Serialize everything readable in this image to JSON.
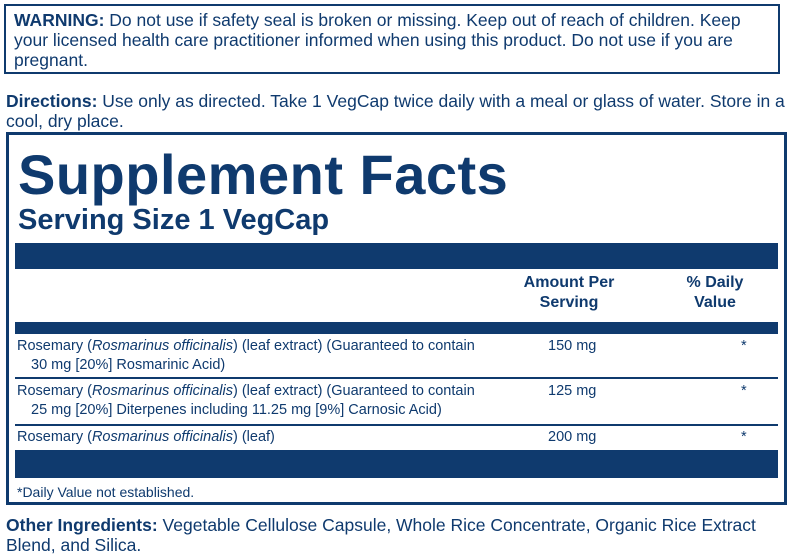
{
  "warning": {
    "label": "WARNING:",
    "text": " Do not use if safety seal is broken or missing. Keep out of reach of children. Keep your licensed health care practitioner informed when using this product. Do not use if you are pregnant."
  },
  "directions": {
    "label": "Directions:",
    "text": " Use only as directed. Take 1 VegCap twice daily with a meal or glass of water. Store in a cool, dry place."
  },
  "facts": {
    "title": "Supplement Facts",
    "serving_size": "Serving Size 1 VegCap",
    "amount_header": "Amount Per Serving",
    "dv_header": "% Daily Value",
    "rows": [
      {
        "name_pre": "Rosemary (",
        "name_italic": "Rosmarinus officinalis",
        "name_post": ") (leaf extract) (Guaranteed to contain",
        "name_line2": "30 mg [20%] Rosmarinic Acid)",
        "amount": "150 mg",
        "dv": "*"
      },
      {
        "name_pre": "Rosemary (",
        "name_italic": "Rosmarinus officinalis",
        "name_post": ") (leaf extract) (Guaranteed to contain",
        "name_line2": "25 mg [20%] Diterpenes including 11.25 mg [9%] Carnosic Acid)",
        "amount": "125 mg",
        "dv": "*"
      },
      {
        "name_pre": "Rosemary (",
        "name_italic": "Rosmarinus officinalis",
        "name_post": ") (leaf)",
        "name_line2": "",
        "amount": "200 mg",
        "dv": "*"
      }
    ],
    "footnote": "*Daily Value not established."
  },
  "other": {
    "label": "Other Ingredients:",
    "text": " Vegetable Cellulose Capsule, Whole Rice Concentrate, Organic Rice Extract Blend, and Silica."
  },
  "colors": {
    "ink": "#0f3a6e"
  }
}
